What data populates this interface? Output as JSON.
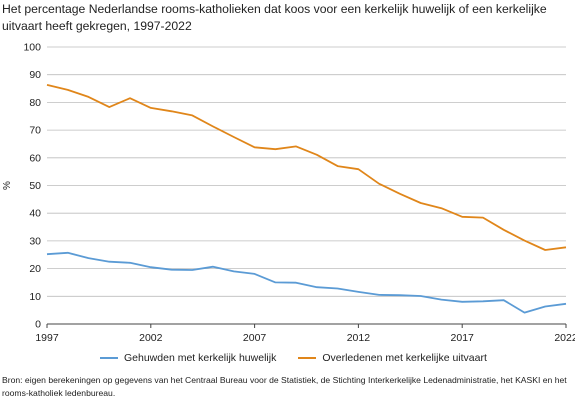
{
  "title": "Het percentage Nederlandse rooms-katholieken dat koos voor een kerkelijk huwelijk of een kerkelijke uitvaart heeft gekregen, 1997-2022",
  "source": "Bron: eigen berekeningen op gegevens van het Centraal Bureau voor de Statistiek, de Stichting Interkerkelijke Ledenadministratie, het KASKI en het rooms-katholiek ledenbureau.",
  "colors": {
    "series1": "#5b9bd5",
    "series2": "#e0861a",
    "grid": "#bdbdbd",
    "axis": "#444444"
  },
  "chart_data": {
    "type": "line",
    "ylabel": "%",
    "ylim": [
      0,
      100
    ],
    "yticks": [
      0,
      10,
      20,
      30,
      40,
      50,
      60,
      70,
      80,
      90,
      100
    ],
    "xlim": [
      1997,
      2022
    ],
    "xticks": [
      1997,
      2002,
      2007,
      2012,
      2017,
      2022
    ],
    "grid": "horizontal",
    "legend_position": "bottom",
    "x": [
      1997,
      1998,
      1999,
      2000,
      2001,
      2002,
      2003,
      2004,
      2005,
      2006,
      2007,
      2008,
      2009,
      2010,
      2011,
      2012,
      2013,
      2014,
      2015,
      2016,
      2017,
      2018,
      2019,
      2020,
      2021,
      2022
    ],
    "series": [
      {
        "name": "Gehuwden met kerkelijk huwelijk",
        "values": [
          25.2,
          25.7,
          23.8,
          22.5,
          22.1,
          20.5,
          19.6,
          19.5,
          20.7,
          19.0,
          18.1,
          15.0,
          14.9,
          13.3,
          12.8,
          11.6,
          10.5,
          10.4,
          10.1,
          8.8,
          8.0,
          8.2,
          8.6,
          4.1,
          6.3,
          7.3
        ]
      },
      {
        "name": "Overledenen met kerkelijke uitvaart",
        "values": [
          86.3,
          84.5,
          82.0,
          78.3,
          81.5,
          78.0,
          76.8,
          75.3,
          71.3,
          67.5,
          63.8,
          63.1,
          64.1,
          61.1,
          57.0,
          55.9,
          50.6,
          47.0,
          43.7,
          41.8,
          38.7,
          38.4,
          34.0,
          30.1,
          26.7,
          27.7
        ]
      }
    ]
  }
}
